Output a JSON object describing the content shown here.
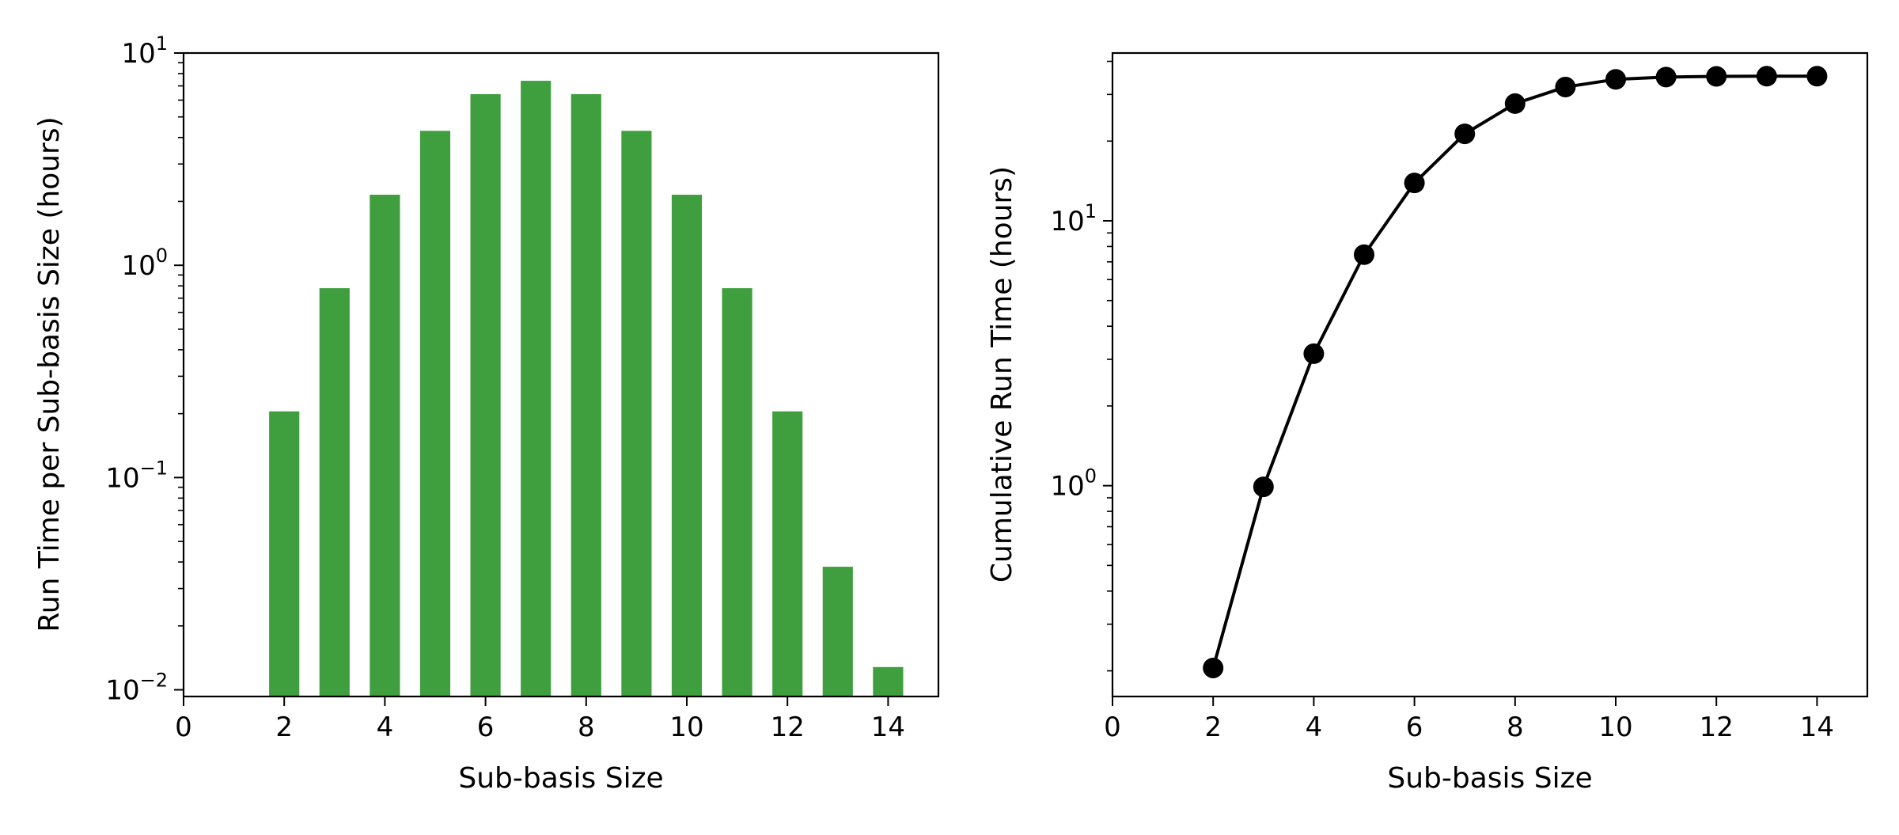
{
  "chart_data": [
    {
      "type": "bar",
      "xlabel": "Sub-basis Size",
      "ylabel": "Run Time per Sub-basis Size (hours)",
      "x": [
        2,
        3,
        4,
        5,
        6,
        7,
        8,
        9,
        10,
        11,
        12,
        13,
        14
      ],
      "values": [
        0.205,
        0.78,
        2.15,
        4.3,
        6.4,
        7.4,
        6.4,
        4.3,
        2.15,
        0.78,
        0.205,
        0.038,
        0.0128
      ],
      "xlim": [
        0,
        15
      ],
      "ylim": [
        0.0093,
        10
      ],
      "yscale": "log",
      "bar_color": "#3f9f3f",
      "xticks": [
        0,
        2,
        4,
        6,
        8,
        10,
        12,
        14
      ],
      "xtick_labels": [
        "0",
        "2",
        "4",
        "6",
        "8",
        "10",
        "12",
        "14"
      ],
      "yticks": [
        {
          "value": 10,
          "base": "10",
          "exp": "1"
        },
        {
          "value": 1,
          "base": "10",
          "exp": "0"
        },
        {
          "value": 0.1,
          "base": "10",
          "exp": "−1"
        },
        {
          "value": 0.01,
          "base": "10",
          "exp": "−2"
        }
      ],
      "grid": false
    },
    {
      "type": "line",
      "xlabel": "Sub-basis Size",
      "ylabel": "Cumulative Run Time (hours)",
      "x": [
        2,
        3,
        4,
        5,
        6,
        7,
        8,
        9,
        10,
        11,
        12,
        13,
        14
      ],
      "values": [
        0.205,
        0.99,
        3.15,
        7.45,
        13.9,
        21.3,
        27.7,
        32.0,
        34.2,
        34.9,
        35.1,
        35.15,
        35.16
      ],
      "xlim": [
        0,
        15
      ],
      "ylim": [
        0.16,
        43
      ],
      "yscale": "log",
      "line_color": "#000000",
      "marker": "circle",
      "xticks": [
        0,
        2,
        4,
        6,
        8,
        10,
        12,
        14
      ],
      "xtick_labels": [
        "0",
        "2",
        "4",
        "6",
        "8",
        "10",
        "12",
        "14"
      ],
      "yticks": [
        {
          "value": 10,
          "base": "10",
          "exp": "1"
        },
        {
          "value": 1,
          "base": "10",
          "exp": "0"
        }
      ],
      "grid": false
    }
  ]
}
